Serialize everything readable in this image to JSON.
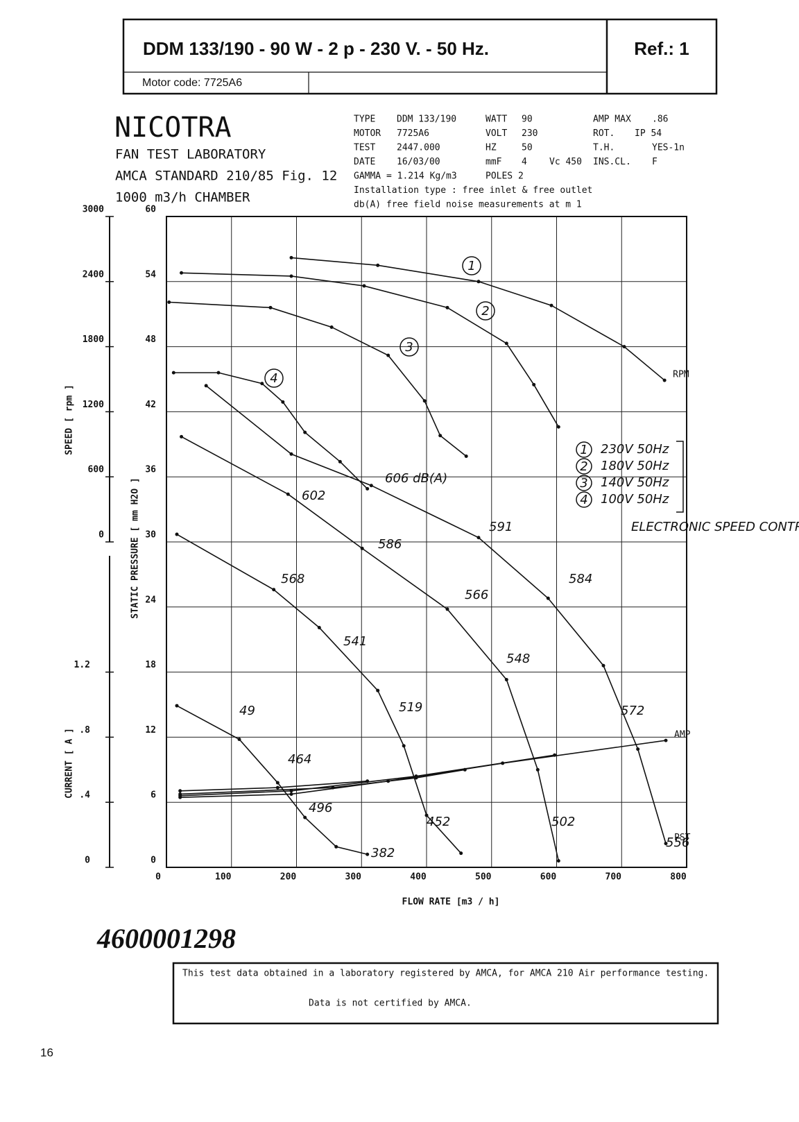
{
  "header": {
    "title": "DDM  133/190 - 90 W - 2 p - 230 V. - 50 Hz.",
    "ref": "Ref.:  1",
    "motor_code": "Motor code: 7725A6"
  },
  "lab": {
    "brand": "NICOTRA",
    "lines": [
      "FAN TEST LABORATORY",
      "AMCA STANDARD 210/85 Fig. 12",
      "1000 m3/h    CHAMBER"
    ]
  },
  "specs": {
    "rows": [
      [
        "TYPE",
        "DDM 133/190",
        "WATT",
        "90",
        "AMP MAX",
        ".86"
      ],
      [
        "MOTOR",
        "7725A6",
        "VOLT",
        "230",
        "ROT.",
        "IP 54"
      ],
      [
        "TEST",
        "2447.000",
        "HZ",
        "50",
        "T.H.",
        "YES-1n"
      ],
      [
        "DATE",
        "16/03/00",
        "mmF",
        "4",
        "Vc 450",
        "INS.CL.",
        "F"
      ],
      [
        "GAMMA = 1.214 Kg/m3",
        "POLES 2"
      ],
      [
        "Installation type :  free inlet & free outlet"
      ],
      [
        "db(A)  free field noise measurements at m  1"
      ]
    ]
  },
  "chart_data": {
    "type": "line",
    "xlabel": "FLOW RATE  [m3 / h]",
    "ylabel": "STATIC PRESSURE  [ mm H2O ]",
    "y2label": "SPEED  [ rpm ]",
    "y3label": "CURRENT  [ A ]",
    "xlim": [
      0,
      800
    ],
    "xticks": [
      0,
      100,
      200,
      300,
      400,
      500,
      600,
      700,
      800
    ],
    "ylim": [
      0,
      60
    ],
    "yticks": [
      0,
      6,
      12,
      18,
      24,
      30,
      36,
      42,
      48,
      54,
      60
    ],
    "y2lim": [
      0,
      3000
    ],
    "y2ticks": [
      0,
      600,
      1200,
      1800,
      2400,
      3000
    ],
    "y3lim": [
      0,
      2
    ],
    "y3ticks": [
      0,
      {
        "value": 0.4,
        "label": ".4"
      },
      {
        "value": 0.8,
        "label": ".8"
      },
      {
        "value": 1.2,
        "label": "1.2"
      }
    ],
    "grid": true,
    "legend_note": "ELECTRONIC SPEED CONTROL",
    "series": [
      {
        "name": "230V 50Hz",
        "tag": "1",
        "axis": "y",
        "color": "#111",
        "end_label": "PST",
        "x": [
          61,
          192,
          315,
          480,
          587,
          672,
          725,
          768
        ],
        "values": [
          44.4,
          38.1,
          35.2,
          30.4,
          24.8,
          18.6,
          10.9,
          2.2
        ]
      },
      {
        "name": "180V 50Hz",
        "tag": "2",
        "axis": "y",
        "color": "#111",
        "x": [
          23,
          187,
          301,
          432,
          523,
          571,
          603
        ],
        "values": [
          39.7,
          34.4,
          29.4,
          23.8,
          17.3,
          9.0,
          0.6
        ]
      },
      {
        "name": "140V 50Hz",
        "tag": "3",
        "axis": "y",
        "color": "#111",
        "x": [
          16,
          165,
          235,
          325,
          365,
          400,
          453
        ],
        "values": [
          30.7,
          25.6,
          22.1,
          16.3,
          11.2,
          4.8,
          1.3
        ]
      },
      {
        "name": "100V 50Hz",
        "tag": "4",
        "axis": "y",
        "color": "#111",
        "x": [
          16,
          112,
          171,
          213,
          261,
          309
        ],
        "values": [
          14.9,
          11.8,
          7.8,
          4.6,
          1.9,
          1.2
        ]
      },
      {
        "tag": "1",
        "axis": "y2",
        "color": "#111",
        "end_label": "RPM",
        "x": [
          192,
          325,
          480,
          592,
          704,
          766
        ],
        "values": [
          2620,
          2550,
          2400,
          2180,
          1800,
          1490
        ]
      },
      {
        "tag": "2",
        "axis": "y2",
        "color": "#111",
        "x": [
          23,
          192,
          304,
          432,
          523,
          565,
          603
        ],
        "values": [
          2480,
          2450,
          2360,
          2160,
          1830,
          1450,
          1060
        ]
      },
      {
        "tag": "3",
        "axis": "y2",
        "color": "#111",
        "x": [
          4,
          160,
          254,
          341,
          397,
          421,
          461
        ],
        "values": [
          2210,
          2160,
          1980,
          1720,
          1300,
          980,
          790
        ]
      },
      {
        "tag": "4",
        "axis": "y2",
        "color": "#111",
        "x": [
          11,
          80,
          147,
          179,
          213,
          267,
          309
        ],
        "values": [
          1560,
          1560,
          1460,
          1290,
          1010,
          740,
          490
        ]
      },
      {
        "axis": "y3",
        "color": "#111",
        "end_label": "AMP",
        "x": [
          21,
          192,
          341,
          517,
          768
        ],
        "values": [
          0.43,
          0.45,
          0.53,
          0.64,
          0.78
        ]
      },
      {
        "axis": "y3",
        "color": "#111",
        "x": [
          21,
          192,
          384,
          597
        ],
        "values": [
          0.44,
          0.47,
          0.56,
          0.69
        ]
      },
      {
        "axis": "y3",
        "color": "#111",
        "x": [
          21,
          256,
          384,
          459
        ],
        "values": [
          0.45,
          0.49,
          0.55,
          0.6
        ]
      },
      {
        "axis": "y3",
        "color": "#111",
        "x": [
          21,
          171,
          309
        ],
        "values": [
          0.47,
          0.49,
          0.53
        ]
      }
    ],
    "annotations": [
      "606 dB(A)",
      "602",
      "586",
      "591",
      "568",
      "566",
      "584",
      "541",
      "548",
      "519",
      "572",
      "49",
      "464",
      "496",
      "452",
      "502",
      "382",
      "556"
    ]
  },
  "code": "4600001298",
  "note": [
    "This test data obtained in a laboratory registered by AMCA, for AMCA 210 Air performance testing.",
    "Data is not certified by AMCA."
  ],
  "page_number": "16"
}
